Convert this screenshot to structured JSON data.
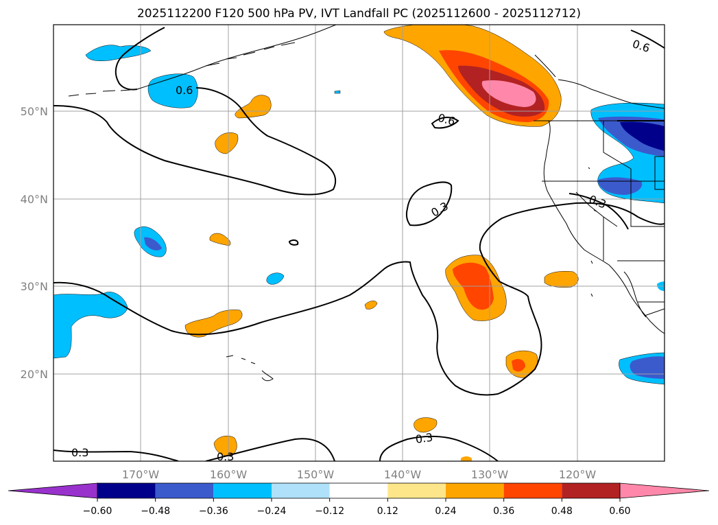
{
  "title": "2025112200 F120 500 hPa PV, IVT Landfall PC (2025112600 - 2025112712)",
  "lat_labels": [
    "50°N",
    "40°N",
    "30°N",
    "20°N"
  ],
  "lon_labels": [
    "170°W",
    "160°W",
    "150°W",
    "140°W",
    "130°W",
    "120°W"
  ],
  "contour_labels": [
    "0.6",
    "0.6",
    "0.6",
    "0.3",
    "0.3",
    "0.3",
    "0.3",
    "0.3"
  ],
  "colorbar": {
    "tick_labels": [
      "−0.60",
      "−0.48",
      "−0.36",
      "−0.24",
      "−0.12",
      "0.12",
      "0.24",
      "0.36",
      "0.48",
      "0.60"
    ],
    "colors": [
      "#9932cc",
      "#00008b",
      "#3b5bcd",
      "#00bfff",
      "#afe2fa",
      "#ffffff",
      "#fde68a",
      "#ffa500",
      "#ff4500",
      "#b22222",
      "#ff88aa"
    ]
  },
  "fill_colors": {
    "neg1": "#00bfff",
    "neg2": "#3b5bcd",
    "neg3": "#00008b",
    "pos1": "#ffa500",
    "pos2": "#ff4500",
    "pos3": "#b22222",
    "pos4": "#ff88aa"
  }
}
